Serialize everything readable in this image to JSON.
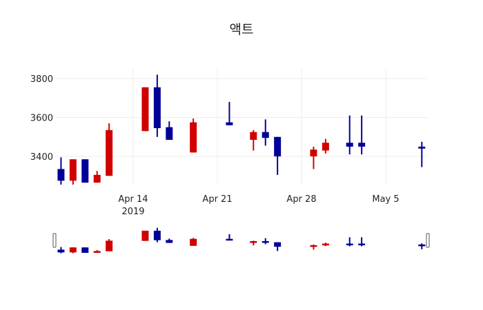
{
  "title": "액트",
  "colors": {
    "increasing": "#d10000",
    "decreasing": "#000099",
    "grid": "#eeeeee"
  },
  "y_ticks": [
    "3400",
    "3600",
    "3800"
  ],
  "x_ticks": [
    {
      "label": "Apr 14",
      "sub": "2019"
    },
    {
      "label": "Apr 21",
      "sub": ""
    },
    {
      "label": "Apr 28",
      "sub": ""
    },
    {
      "label": "May 5",
      "sub": ""
    }
  ],
  "chart_data": {
    "type": "candlestick",
    "title": "액트",
    "xlabel": "",
    "ylabel": "",
    "ylim": [
      3260,
      3840
    ],
    "x_tick_labels": [
      "Apr 14\n2019",
      "Apr 21",
      "Apr 28",
      "May 5"
    ],
    "y_tick_labels": [
      3400,
      3600,
      3800
    ],
    "increasing_color": "#d10000",
    "decreasing_color": "#000099",
    "rangeslider": true,
    "candles": [
      {
        "date": "2019-04-08",
        "open": 3335,
        "high": 3395,
        "low": 3255,
        "close": 3275
      },
      {
        "date": "2019-04-09",
        "open": 3275,
        "high": 3385,
        "low": 3255,
        "close": 3385
      },
      {
        "date": "2019-04-10",
        "open": 3385,
        "high": 3385,
        "low": 3265,
        "close": 3265
      },
      {
        "date": "2019-04-11",
        "open": 3265,
        "high": 3325,
        "low": 3265,
        "close": 3305
      },
      {
        "date": "2019-04-12",
        "open": 3300,
        "high": 3570,
        "low": 3300,
        "close": 3535
      },
      {
        "date": "2019-04-15",
        "open": 3530,
        "high": 3755,
        "low": 3530,
        "close": 3755
      },
      {
        "date": "2019-04-16",
        "open": 3755,
        "high": 3820,
        "low": 3500,
        "close": 3545
      },
      {
        "date": "2019-04-17",
        "open": 3550,
        "high": 3580,
        "low": 3485,
        "close": 3485
      },
      {
        "date": "2019-04-19",
        "open": 3420,
        "high": 3595,
        "low": 3420,
        "close": 3575
      },
      {
        "date": "2019-04-22",
        "open": 3575,
        "high": 3680,
        "low": 3560,
        "close": 3560
      },
      {
        "date": "2019-04-24",
        "open": 3485,
        "high": 3535,
        "low": 3430,
        "close": 3525
      },
      {
        "date": "2019-04-25",
        "open": 3525,
        "high": 3590,
        "low": 3455,
        "close": 3495
      },
      {
        "date": "2019-04-26",
        "open": 3500,
        "high": 3500,
        "low": 3305,
        "close": 3400
      },
      {
        "date": "2019-04-29",
        "open": 3400,
        "high": 3450,
        "low": 3335,
        "close": 3435
      },
      {
        "date": "2019-04-30",
        "open": 3430,
        "high": 3490,
        "low": 3415,
        "close": 3470
      },
      {
        "date": "2019-05-02",
        "open": 3470,
        "high": 3610,
        "low": 3410,
        "close": 3450
      },
      {
        "date": "2019-05-03",
        "open": 3470,
        "high": 3610,
        "low": 3410,
        "close": 3450
      },
      {
        "date": "2019-05-08",
        "open": 3450,
        "high": 3475,
        "low": 3345,
        "close": 3440
      }
    ]
  }
}
